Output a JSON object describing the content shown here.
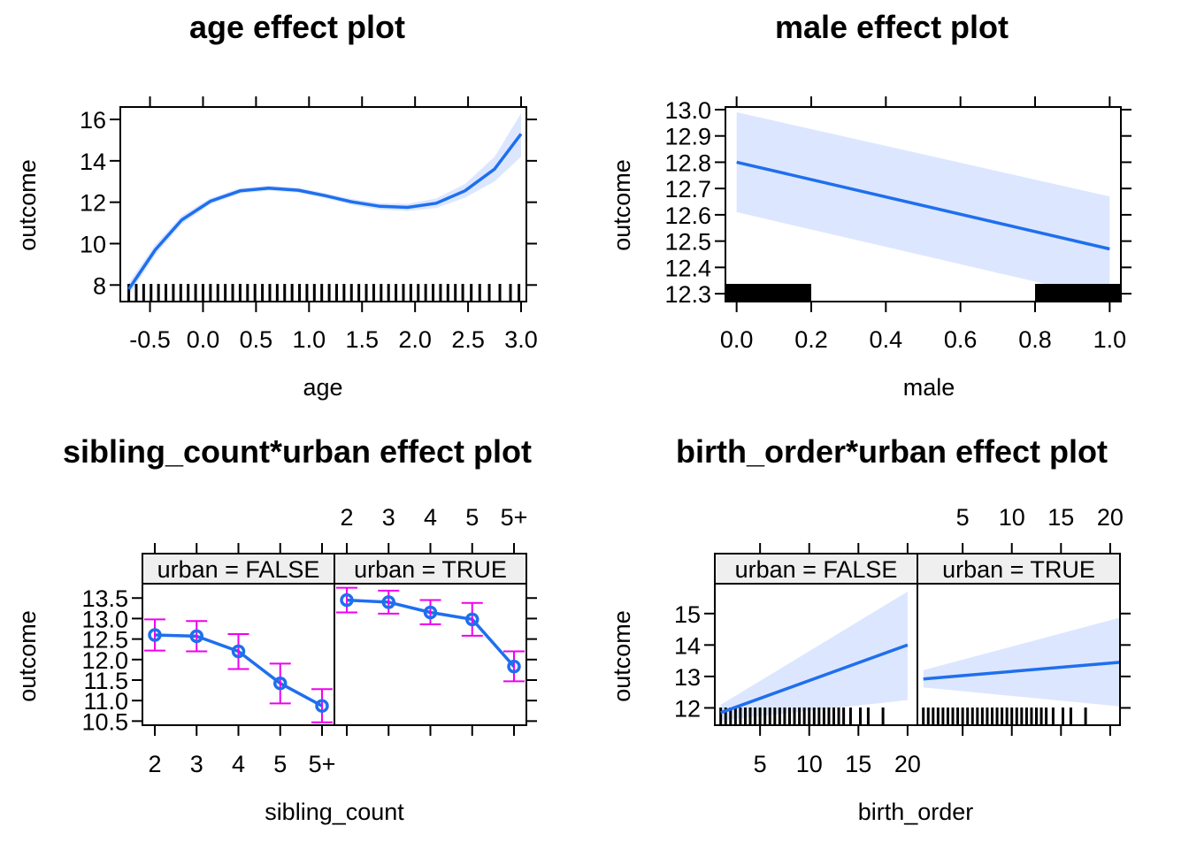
{
  "colors": {
    "line": "#1F6FEE",
    "band": "#DCE7FF",
    "errorbar": "#EE00EE",
    "strip_fill": "#EFEFEF",
    "rug": "#000000"
  },
  "chart_data": [
    {
      "id": "age",
      "type": "line",
      "title": "age effect plot",
      "xlabel": "age",
      "ylabel": "outcome",
      "xlim": [
        -0.78,
        3.05
      ],
      "ylim": [
        7.2,
        16.6
      ],
      "xticks": [
        -0.5,
        0.0,
        0.5,
        1.0,
        1.5,
        2.0,
        2.5,
        3.0
      ],
      "xtick_labels": [
        "-0.5",
        "0.0",
        "0.5",
        "1.0",
        "1.5",
        "2.0",
        "2.5",
        "3.0"
      ],
      "yticks": [
        8,
        10,
        12,
        14,
        16
      ],
      "ytick_labels": [
        "8",
        "10",
        "12",
        "14",
        "16"
      ],
      "x": [
        -0.7,
        -0.45,
        -0.2,
        0.07,
        0.35,
        0.62,
        0.9,
        1.15,
        1.4,
        1.67,
        1.93,
        2.2,
        2.47,
        2.75,
        3.0
      ],
      "y": [
        7.8,
        9.7,
        11.15,
        12.05,
        12.55,
        12.68,
        12.58,
        12.32,
        12.02,
        11.8,
        11.75,
        11.95,
        12.55,
        13.6,
        15.3
      ],
      "lower": [
        7.5,
        9.45,
        10.95,
        11.9,
        12.42,
        12.56,
        12.46,
        12.2,
        11.88,
        11.64,
        11.58,
        11.72,
        12.22,
        13.0,
        14.2
      ],
      "upper": [
        8.1,
        9.95,
        11.35,
        12.2,
        12.68,
        12.8,
        12.7,
        12.44,
        12.16,
        11.96,
        11.92,
        12.18,
        12.88,
        14.2,
        16.3
      ],
      "rug_x": [
        -0.7,
        -0.63,
        -0.56,
        -0.49,
        -0.42,
        -0.35,
        -0.28,
        -0.21,
        -0.14,
        -0.07,
        0.0,
        0.07,
        0.14,
        0.21,
        0.28,
        0.35,
        0.42,
        0.49,
        0.56,
        0.63,
        0.7,
        0.77,
        0.84,
        0.91,
        0.98,
        1.05,
        1.12,
        1.19,
        1.26,
        1.33,
        1.4,
        1.47,
        1.54,
        1.61,
        1.68,
        1.75,
        1.82,
        1.89,
        1.96,
        2.03,
        2.1,
        2.17,
        2.24,
        2.31,
        2.38,
        2.45,
        2.53,
        2.61,
        2.7,
        2.8,
        2.9,
        2.98
      ]
    },
    {
      "id": "male",
      "type": "line",
      "title": "male effect plot",
      "xlabel": "male",
      "ylabel": "outcome",
      "xlim": [
        -0.03,
        1.03
      ],
      "ylim": [
        12.27,
        13.01
      ],
      "xticks": [
        0.0,
        0.2,
        0.4,
        0.6,
        0.8,
        1.0
      ],
      "xtick_labels": [
        "0.0",
        "0.2",
        "0.4",
        "0.6",
        "0.8",
        "1.0"
      ],
      "yticks": [
        12.3,
        12.4,
        12.5,
        12.6,
        12.7,
        12.8,
        12.9,
        13.0
      ],
      "ytick_labels": [
        "12.3",
        "12.4",
        "12.5",
        "12.6",
        "12.7",
        "12.8",
        "12.9",
        "13.0"
      ],
      "x": [
        0.0,
        1.0
      ],
      "y": [
        12.8,
        12.47
      ],
      "lower": [
        12.61,
        12.28
      ],
      "upper": [
        12.99,
        12.67
      ],
      "rug_blocks": [
        [
          -0.03,
          0.2
        ],
        [
          0.8,
          1.03
        ]
      ]
    },
    {
      "id": "sibling_count",
      "type": "line",
      "title": "sibling_count*urban effect plot",
      "xlabel": "sibling_count",
      "ylabel": "outcome",
      "categories": [
        "2",
        "3",
        "4",
        "5",
        "5+"
      ],
      "ylim": [
        10.4,
        13.85
      ],
      "yticks": [
        10.5,
        11.0,
        11.5,
        12.0,
        12.5,
        13.0,
        13.5
      ],
      "ytick_labels": [
        "10.5",
        "11.0",
        "11.5",
        "12.0",
        "12.5",
        "13.0",
        "13.5"
      ],
      "panels": [
        {
          "strip": "urban = FALSE",
          "values": [
            12.6,
            12.57,
            12.2,
            11.42,
            10.87
          ],
          "lower": [
            12.22,
            12.2,
            11.77,
            10.93,
            10.47
          ],
          "upper": [
            12.98,
            12.94,
            12.62,
            11.9,
            11.28
          ]
        },
        {
          "strip": "urban = TRUE",
          "values": [
            13.45,
            13.4,
            13.15,
            12.98,
            11.83
          ],
          "lower": [
            13.15,
            13.12,
            12.86,
            12.58,
            11.47
          ],
          "upper": [
            13.75,
            13.68,
            13.45,
            13.38,
            12.2
          ]
        }
      ]
    },
    {
      "id": "birth_order",
      "type": "line",
      "title": "birth_order*urban effect plot",
      "xlabel": "birth_order",
      "ylabel": "outcome",
      "xlim": [
        0.4,
        21.0
      ],
      "ylim": [
        11.45,
        15.95
      ],
      "xticks": [
        5,
        10,
        15,
        20
      ],
      "xtick_labels": [
        "5",
        "10",
        "15",
        "20"
      ],
      "yticks": [
        12,
        13,
        14,
        15
      ],
      "ytick_labels": [
        "12",
        "13",
        "14",
        "15"
      ],
      "panels": [
        {
          "strip": "urban = FALSE",
          "x": [
            1,
            20
          ],
          "y": [
            11.85,
            14.0
          ],
          "lower": [
            11.6,
            12.25
          ],
          "upper": [
            12.1,
            15.7
          ]
        },
        {
          "strip": "urban = TRUE",
          "x": [
            1,
            21
          ],
          "y": [
            12.92,
            13.45
          ],
          "lower": [
            12.65,
            12.05
          ],
          "upper": [
            13.2,
            14.87
          ]
        }
      ],
      "rug_x": [
        1,
        1.5,
        2,
        2.5,
        3,
        3.5,
        4,
        4.5,
        5,
        5.5,
        6,
        6.5,
        7,
        7.5,
        8,
        8.5,
        9,
        9.5,
        10,
        10.5,
        11,
        11.5,
        12,
        12.5,
        13,
        13.5,
        14.2,
        15.2,
        16.0,
        17.5
      ]
    }
  ]
}
